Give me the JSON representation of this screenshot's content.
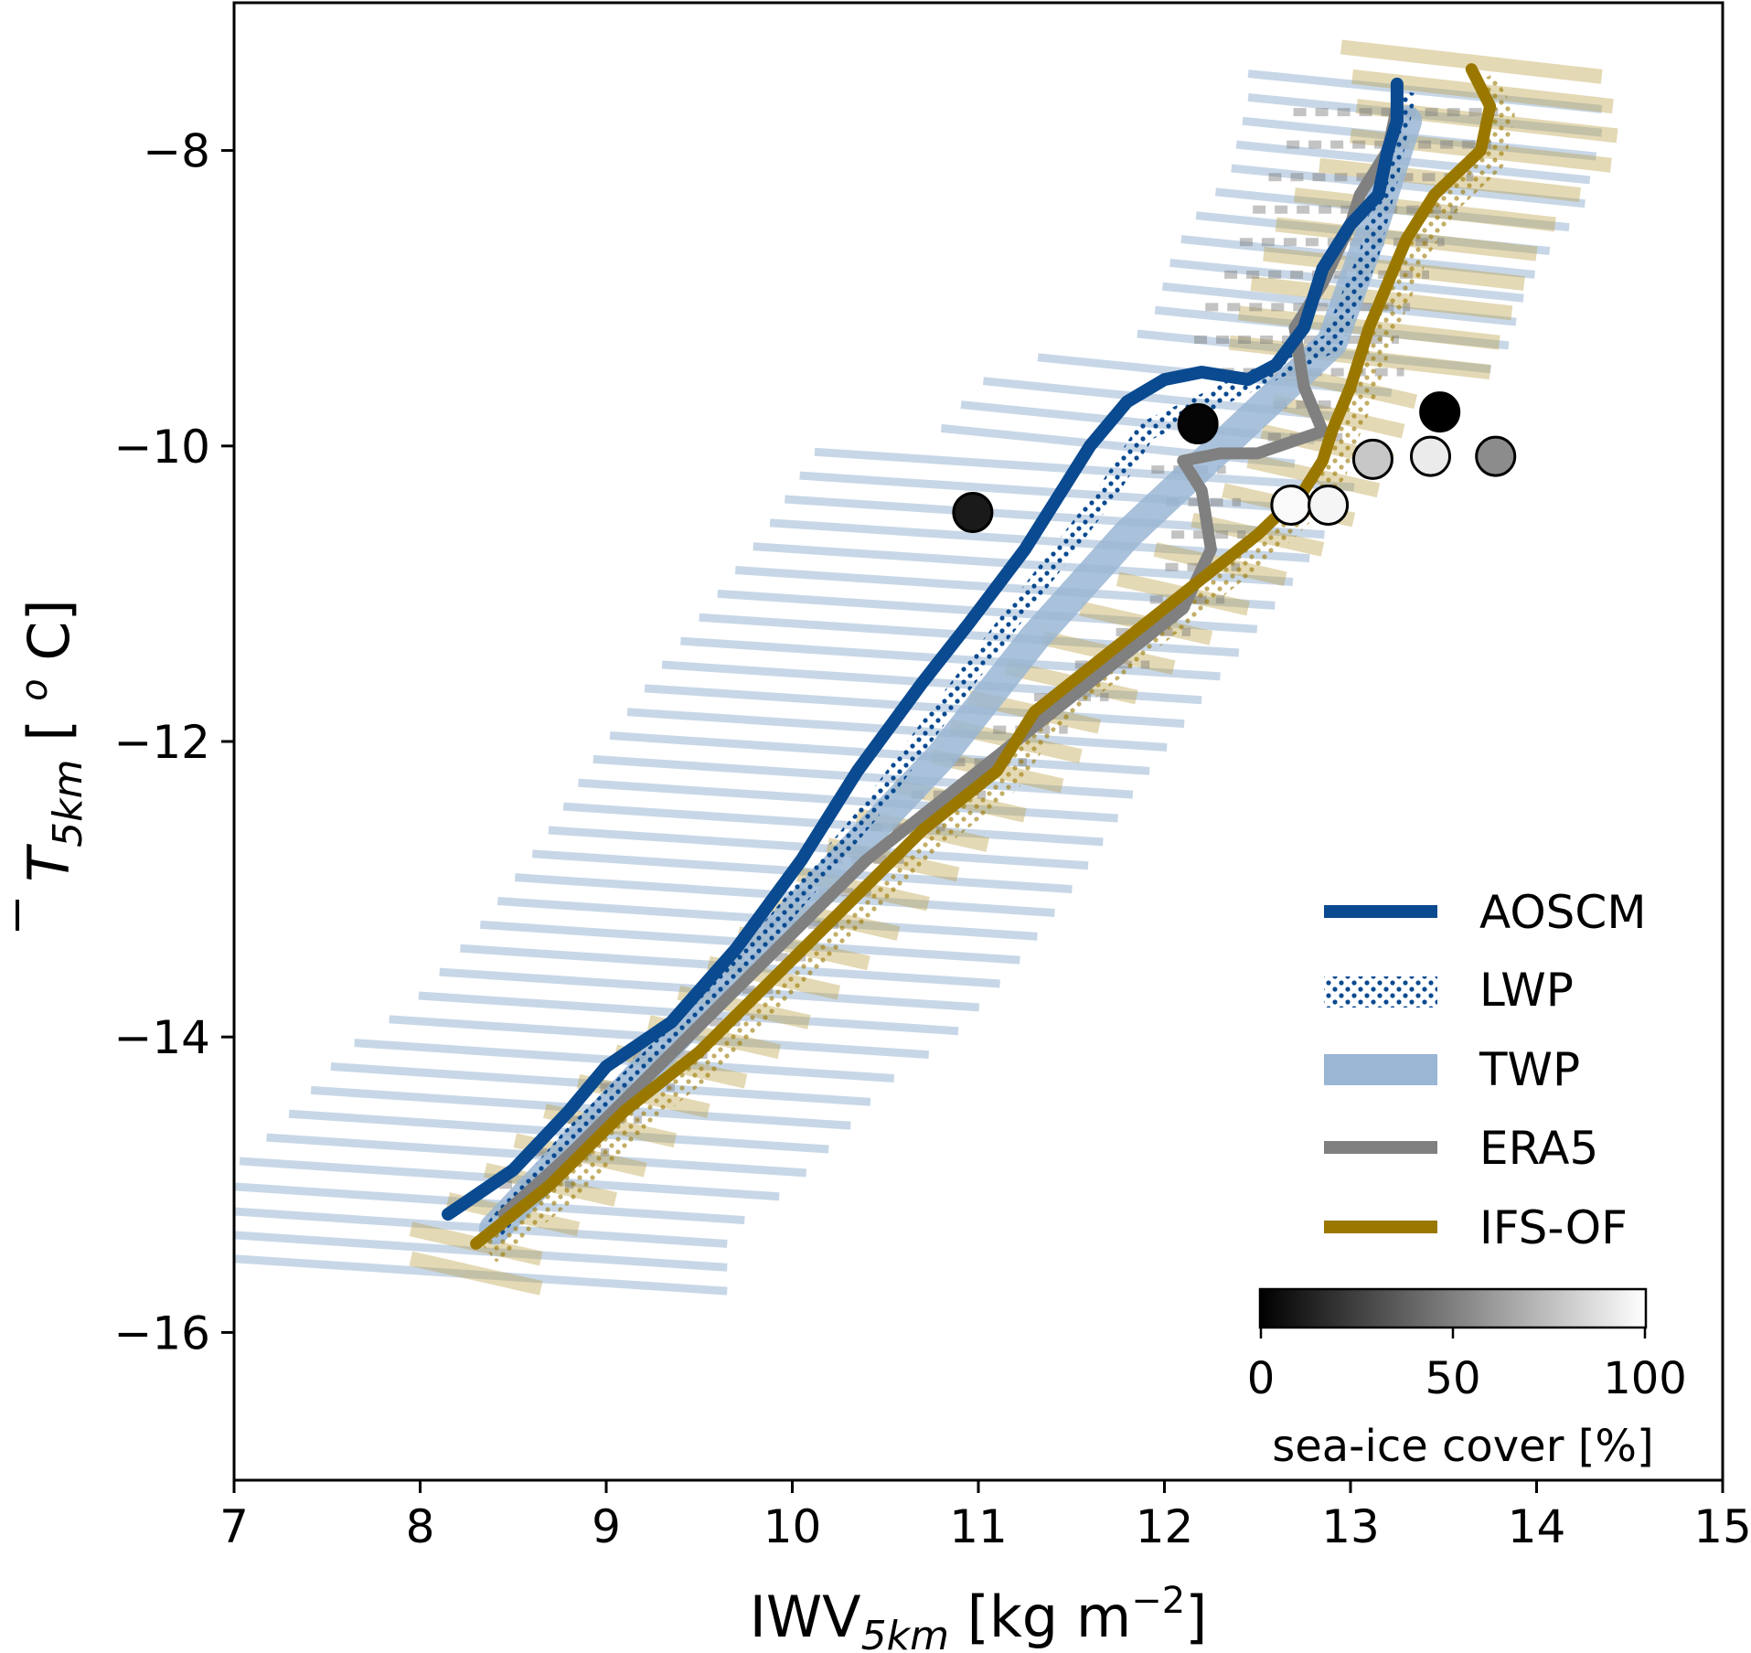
{
  "chart_data": {
    "type": "line",
    "xlabel": "IWV",
    "xlabel_sub": "5km",
    "xlabel_unit": " [kg m",
    "xlabel_unit_sup": "−2",
    "xlabel_unit_end": "]",
    "ylabel": "T",
    "ylabel_sub": "5km",
    "ylabel_unit": " [ ",
    "ylabel_unit_sup": "o",
    "ylabel_unit_end": " C]",
    "xlim": [
      7,
      15
    ],
    "ylim": [
      -17,
      -7
    ],
    "xticks": [
      7,
      8,
      9,
      10,
      11,
      12,
      13,
      14,
      15
    ],
    "yticks": [
      -16,
      -14,
      -12,
      -10,
      -8
    ],
    "xtick_labels": [
      "7",
      "8",
      "9",
      "10",
      "11",
      "12",
      "13",
      "14",
      "15"
    ],
    "ytick_labels": [
      "−16",
      "−14",
      "−12",
      "−10",
      "−8"
    ],
    "grid": false,
    "legend_position": "lower-right",
    "series": [
      {
        "name": "AOSCM",
        "color": "#0a4a90",
        "style": "solid",
        "x": [
          8.15,
          8.5,
          8.8,
          9.0,
          9.35,
          9.7,
          10.05,
          10.35,
          10.7,
          10.95,
          11.25,
          11.45,
          11.6,
          11.8,
          12.0,
          12.2,
          12.45,
          12.6,
          12.75,
          12.85,
          13.0,
          13.15,
          13.2,
          13.25,
          13.25
        ],
        "y": [
          -15.2,
          -14.9,
          -14.5,
          -14.2,
          -13.9,
          -13.4,
          -12.8,
          -12.2,
          -11.6,
          -11.2,
          -10.7,
          -10.3,
          -10.0,
          -9.7,
          -9.55,
          -9.5,
          -9.55,
          -9.45,
          -9.2,
          -8.8,
          -8.5,
          -8.3,
          -8.0,
          -7.8,
          -7.55
        ]
      },
      {
        "name": "LWP",
        "color": "#0a4a90",
        "style": "dotted-band",
        "x": [
          8.4,
          8.8,
          9.2,
          9.6,
          10.0,
          10.4,
          10.8,
          11.1,
          11.4,
          11.7,
          11.9,
          12.9,
          13.0,
          13.1,
          13.2,
          13.3
        ],
        "y": [
          -15.3,
          -14.7,
          -14.2,
          -13.7,
          -13.1,
          -12.5,
          -11.8,
          -11.3,
          -10.8,
          -10.3,
          -9.9,
          -9.3,
          -9.0,
          -8.7,
          -8.2,
          -7.6
        ]
      },
      {
        "name": "TWP",
        "color": "#9ab6d4",
        "style": "band",
        "x": [
          8.4,
          9.0,
          9.6,
          10.2,
          10.8,
          11.3,
          11.8,
          12.9,
          13.1,
          13.3
        ],
        "y": [
          -15.3,
          -14.5,
          -13.7,
          -12.9,
          -12.1,
          -11.3,
          -10.6,
          -9.3,
          -8.6,
          -7.8
        ]
      },
      {
        "name": "ERA5",
        "color": "#808080",
        "style": "solid",
        "x": [
          8.45,
          8.8,
          9.2,
          9.6,
          10.0,
          10.4,
          10.9,
          11.4,
          11.8,
          12.1,
          12.25,
          12.2,
          12.1,
          12.3,
          12.5,
          12.85,
          12.75,
          12.7,
          12.85,
          13.0,
          13.05,
          13.2,
          13.25
        ],
        "y": [
          -15.2,
          -14.8,
          -14.3,
          -13.8,
          -13.3,
          -12.8,
          -12.3,
          -11.8,
          -11.4,
          -11.1,
          -10.7,
          -10.3,
          -10.1,
          -10.05,
          -10.05,
          -9.9,
          -9.6,
          -9.2,
          -8.9,
          -8.5,
          -8.3,
          -8.0,
          -7.7
        ]
      },
      {
        "name": "IFS-OF",
        "color": "#9a7800",
        "style": "solid",
        "x": [
          8.3,
          8.7,
          9.1,
          9.5,
          9.9,
          10.3,
          10.7,
          11.1,
          11.3,
          11.6,
          11.9,
          12.2,
          12.5,
          12.75,
          12.85,
          12.9,
          13.0,
          13.1,
          13.2,
          13.3,
          13.45,
          13.7,
          13.75,
          13.65
        ],
        "y": [
          -15.4,
          -15.0,
          -14.5,
          -14.1,
          -13.6,
          -13.1,
          -12.6,
          -12.2,
          -11.8,
          -11.5,
          -11.2,
          -10.9,
          -10.6,
          -10.3,
          -10.1,
          -9.9,
          -9.6,
          -9.2,
          -8.9,
          -8.6,
          -8.3,
          -8.0,
          -7.7,
          -7.45
        ]
      }
    ],
    "sea_ice_points": {
      "description_label": "sea-ice cover",
      "points": [
        {
          "x": 10.97,
          "y": -10.45,
          "sea_ice": 10
        },
        {
          "x": 12.18,
          "y": -9.85,
          "sea_ice": 2
        },
        {
          "x": 13.48,
          "y": -9.77,
          "sea_ice": 0
        },
        {
          "x": 12.68,
          "y": -10.4,
          "sea_ice": 98
        },
        {
          "x": 12.88,
          "y": -10.4,
          "sea_ice": 96
        },
        {
          "x": 13.12,
          "y": -10.09,
          "sea_ice": 78
        },
        {
          "x": 13.43,
          "y": -10.07,
          "sea_ice": 92
        },
        {
          "x": 13.78,
          "y": -10.07,
          "sea_ice": 55
        }
      ]
    },
    "colorbar": {
      "label": "sea-ice cover [%]",
      "min": 0,
      "max": 100,
      "tick_labels": [
        "0",
        "50",
        "100"
      ]
    }
  }
}
